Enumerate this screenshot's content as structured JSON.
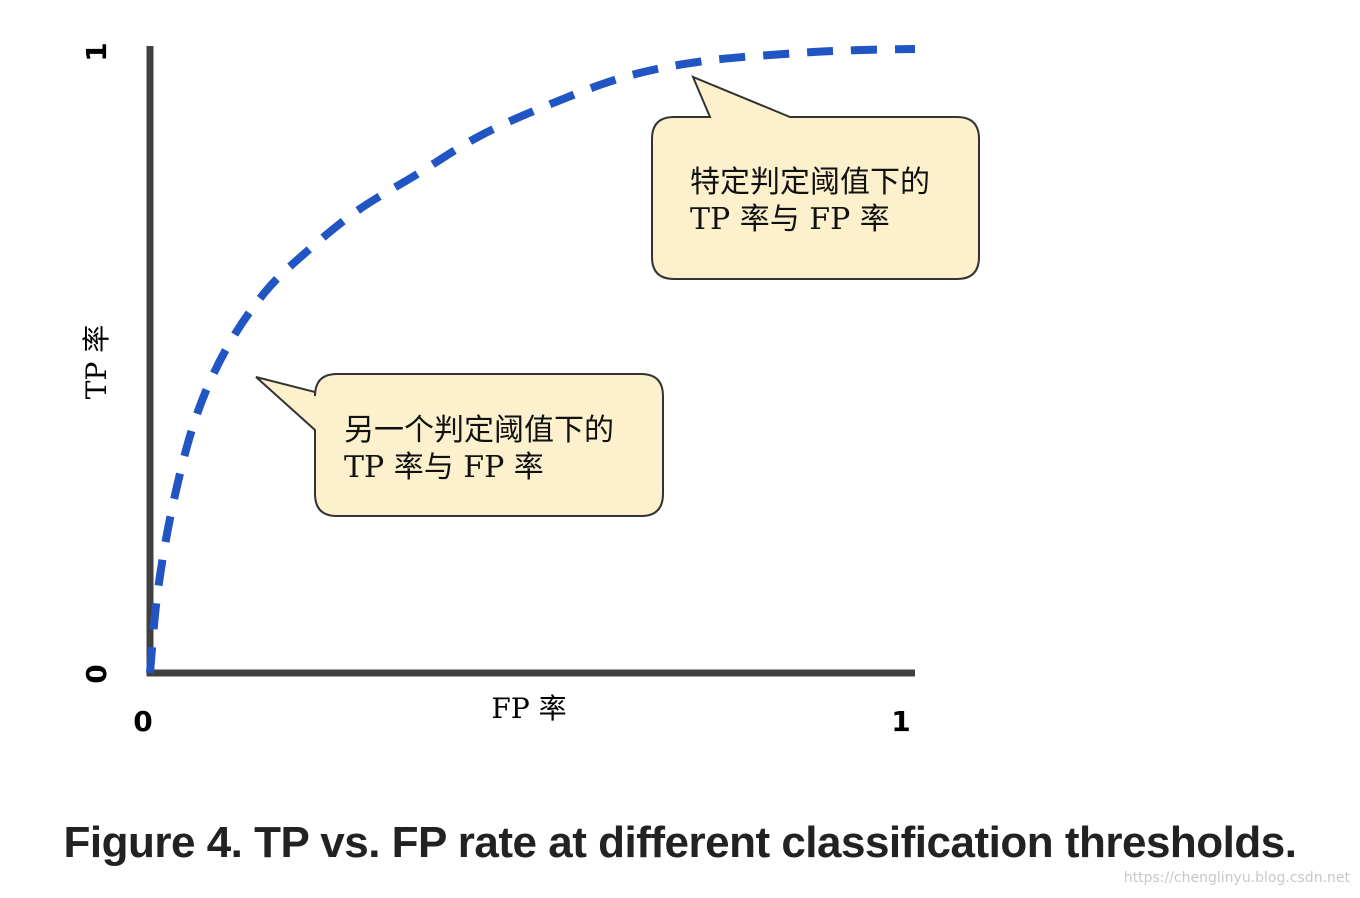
{
  "chart_data": {
    "type": "line",
    "xlabel": "FP 率",
    "ylabel": "TP 率",
    "xlim": [
      0,
      1
    ],
    "ylim": [
      0,
      1
    ],
    "x_ticks": [
      "0",
      "1"
    ],
    "y_ticks": [
      "0",
      "1"
    ],
    "grid": false,
    "line_style": "dashed",
    "color": "#2255c4",
    "series": [
      {
        "x": [
          0,
          0.01,
          0.03,
          0.06,
          0.1,
          0.15,
          0.2,
          0.27,
          0.35,
          0.43,
          0.52,
          0.62,
          0.72,
          0.84,
          0.92,
          1.0
        ],
        "y": [
          0,
          0.13,
          0.27,
          0.41,
          0.52,
          0.61,
          0.67,
          0.74,
          0.8,
          0.86,
          0.91,
          0.955,
          0.98,
          0.993,
          0.998,
          1.0
        ]
      }
    ],
    "annotations": [
      {
        "text_lines": [
          "另一个判定阈值下的",
          "TP 率与 FP 率"
        ],
        "point": [
          0.14,
          0.475
        ]
      },
      {
        "text_lines": [
          "特定判定阈值下的",
          "TP 率与 FP 率"
        ],
        "point": [
          0.71,
          0.955
        ]
      }
    ],
    "caption": "Figure 4. TP vs. FP rate at different classification thresholds."
  },
  "watermark": "https://chenglinyu.blog.csdn.net"
}
